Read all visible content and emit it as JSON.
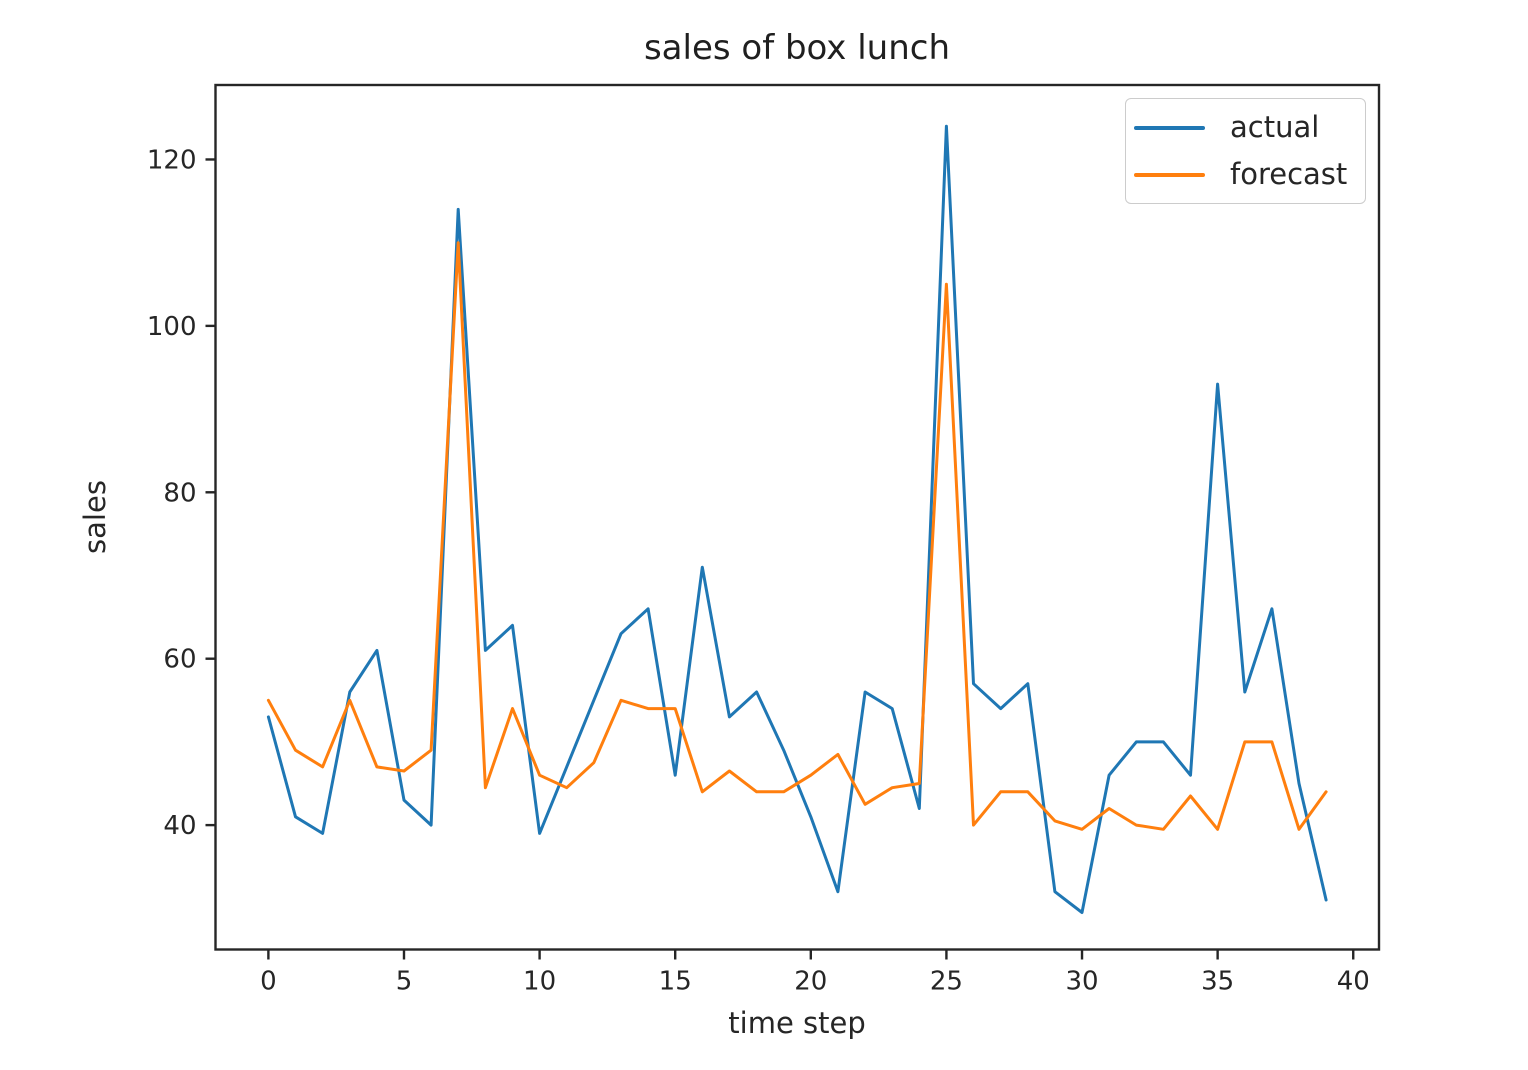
{
  "chart_data": {
    "type": "line",
    "title": "sales of box lunch",
    "xlabel": "time step",
    "ylabel": "sales",
    "x": [
      0,
      1,
      2,
      3,
      4,
      5,
      6,
      7,
      8,
      9,
      10,
      11,
      12,
      13,
      14,
      15,
      16,
      17,
      18,
      19,
      20,
      21,
      22,
      23,
      24,
      25,
      26,
      27,
      28,
      29,
      30,
      31,
      32,
      33,
      34,
      35,
      36,
      37,
      38,
      39
    ],
    "series": [
      {
        "name": "actual",
        "color": "#1f77b4",
        "values": [
          53,
          41,
          39,
          56,
          61,
          43,
          40,
          114,
          61,
          64,
          39,
          47,
          55,
          63,
          66,
          46,
          71,
          53,
          56,
          49,
          41,
          32,
          56,
          54,
          42,
          124,
          57,
          54,
          57,
          32,
          29.5,
          46,
          50,
          50,
          46,
          93,
          56,
          66,
          45,
          31
        ]
      },
      {
        "name": "forecast",
        "color": "#ff7f0e",
        "values": [
          55,
          49,
          47,
          55,
          47,
          46.5,
          49,
          110,
          44.5,
          54,
          46,
          44.5,
          47.5,
          55,
          54,
          54,
          44,
          46.5,
          44,
          44,
          46,
          48.5,
          42.5,
          44.5,
          45,
          105,
          40,
          44,
          44,
          40.5,
          39.5,
          42,
          40,
          39.5,
          43.5,
          39.5,
          50,
          50,
          39.5,
          44
        ]
      }
    ],
    "xticks": [
      0,
      5,
      10,
      15,
      20,
      25,
      30,
      35,
      40
    ],
    "yticks": [
      40,
      60,
      80,
      100,
      120
    ],
    "xlim": [
      -1.95,
      40.95
    ],
    "ylim": [
      25.05,
      128.95
    ],
    "grid": false,
    "legend_position": "upper right"
  },
  "colors": {
    "axis": "#262626",
    "background": "#ffffff",
    "legend_border": "#cccccc"
  }
}
